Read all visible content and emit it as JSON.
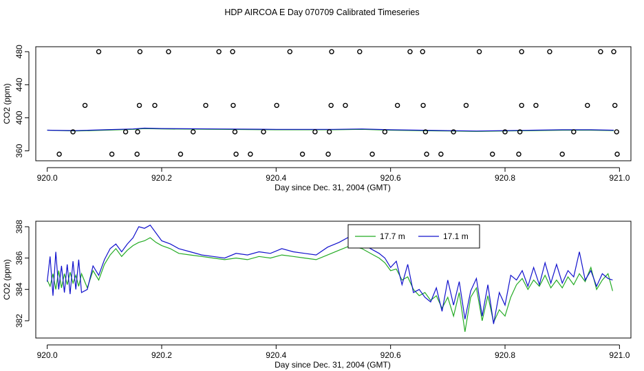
{
  "title": "HDP AIRCOA E  Day 070709  Calibrated Timeseries",
  "colors": {
    "series_a": "#22aa22",
    "series_b": "#1010cc",
    "frame": "#000000"
  },
  "chart_data": [
    {
      "type": "scatter",
      "xlabel": "Day since Dec. 31, 2004 (GMT)",
      "ylabel": "CO2 (ppm)",
      "xlim": [
        919.98,
        921.02
      ],
      "ylim": [
        348,
        486
      ],
      "xticks": [
        920.0,
        920.2,
        920.4,
        920.6,
        920.8,
        921.0
      ],
      "xtick_labels": [
        "920.0",
        "920.2",
        "920.4",
        "920.6",
        "920.8",
        "921.0"
      ],
      "yticks": [
        360,
        400,
        440,
        480
      ],
      "ytick_labels": [
        "360",
        "400",
        "440",
        "480"
      ],
      "grid": false,
      "points": [
        [
          920.09,
          480
        ],
        [
          920.162,
          480
        ],
        [
          920.212,
          480
        ],
        [
          920.3,
          480
        ],
        [
          920.324,
          480
        ],
        [
          920.424,
          480
        ],
        [
          920.497,
          480
        ],
        [
          920.546,
          480
        ],
        [
          920.634,
          480
        ],
        [
          920.656,
          480
        ],
        [
          920.755,
          480
        ],
        [
          920.829,
          480
        ],
        [
          920.878,
          480
        ],
        [
          920.967,
          480
        ],
        [
          920.99,
          480
        ],
        [
          920.066,
          415
        ],
        [
          920.161,
          415
        ],
        [
          920.188,
          415
        ],
        [
          920.277,
          415
        ],
        [
          920.325,
          415
        ],
        [
          920.401,
          415
        ],
        [
          920.496,
          415
        ],
        [
          920.521,
          415
        ],
        [
          920.612,
          415
        ],
        [
          920.657,
          415
        ],
        [
          920.732,
          415
        ],
        [
          920.829,
          415
        ],
        [
          920.854,
          415
        ],
        [
          920.944,
          415
        ],
        [
          920.992,
          415
        ],
        [
          920.045,
          383
        ],
        [
          920.137,
          383
        ],
        [
          920.158,
          383
        ],
        [
          920.255,
          383
        ],
        [
          920.328,
          383
        ],
        [
          920.378,
          383
        ],
        [
          920.468,
          383
        ],
        [
          920.493,
          383
        ],
        [
          920.59,
          383
        ],
        [
          920.661,
          383
        ],
        [
          920.71,
          383
        ],
        [
          920.8,
          383
        ],
        [
          920.826,
          383
        ],
        [
          920.92,
          383
        ],
        [
          920.995,
          383
        ],
        [
          920.021,
          356
        ],
        [
          920.113,
          356
        ],
        [
          920.157,
          356
        ],
        [
          920.233,
          356
        ],
        [
          920.33,
          356
        ],
        [
          920.355,
          356
        ],
        [
          920.446,
          356
        ],
        [
          920.491,
          356
        ],
        [
          920.568,
          356
        ],
        [
          920.663,
          356
        ],
        [
          920.688,
          356
        ],
        [
          920.778,
          356
        ],
        [
          920.824,
          356
        ],
        [
          920.9,
          356
        ],
        [
          920.996,
          356
        ]
      ],
      "series": [
        {
          "name": "17.7 m",
          "x": [
            920.0,
            920.05,
            920.1,
            920.15,
            920.17,
            920.2,
            920.3,
            920.4,
            920.5,
            920.55,
            920.6,
            920.65,
            920.7,
            920.75,
            920.8,
            920.85,
            920.9,
            920.95,
            920.99
          ],
          "values": [
            385,
            384,
            385,
            386,
            387,
            386.5,
            386,
            385.5,
            385.5,
            386,
            385,
            384.5,
            384,
            383.5,
            384,
            384.5,
            385,
            385,
            384.5
          ]
        },
        {
          "name": "17.1 m",
          "x": [
            920.0,
            920.05,
            920.1,
            920.15,
            920.17,
            920.2,
            920.3,
            920.4,
            920.5,
            920.55,
            920.6,
            920.65,
            920.7,
            920.75,
            920.8,
            920.85,
            920.9,
            920.95,
            920.99
          ],
          "values": [
            385,
            384.5,
            385.5,
            386.5,
            387.5,
            387,
            386.5,
            386,
            386,
            386.5,
            385.5,
            385,
            384.5,
            384,
            384.5,
            385,
            385.5,
            385.5,
            385
          ]
        }
      ]
    },
    {
      "type": "line",
      "xlabel": "Day since Dec. 31, 2004 (GMT)",
      "ylabel": "CO2 (ppm)",
      "xlim": [
        919.98,
        921.02
      ],
      "ylim": [
        380.9,
        388.35
      ],
      "xticks": [
        920.0,
        920.2,
        920.4,
        920.6,
        920.8,
        921.0
      ],
      "xtick_labels": [
        "920.0",
        "920.2",
        "920.4",
        "920.6",
        "920.8",
        "921.0"
      ],
      "yticks": [
        382,
        384,
        386,
        388
      ],
      "ytick_labels": [
        "382",
        "384",
        "386",
        "388"
      ],
      "grid": false,
      "legend_position": "top-right",
      "series": [
        {
          "name": "17.7 m",
          "x": [
            920.0,
            920.005,
            920.01,
            920.015,
            920.02,
            920.025,
            920.03,
            920.035,
            920.04,
            920.045,
            920.05,
            920.055,
            920.06,
            920.07,
            920.08,
            920.09,
            920.1,
            920.11,
            920.12,
            920.13,
            920.14,
            920.15,
            920.16,
            920.17,
            920.18,
            920.19,
            920.2,
            920.215,
            920.23,
            920.25,
            920.27,
            920.29,
            920.31,
            920.33,
            920.35,
            920.37,
            920.39,
            920.41,
            920.43,
            920.45,
            920.47,
            920.49,
            920.51,
            920.53,
            920.55,
            920.57,
            920.58,
            920.59,
            920.6,
            920.61,
            920.62,
            920.63,
            920.64,
            920.65,
            920.66,
            920.67,
            920.68,
            920.69,
            920.7,
            920.71,
            920.72,
            920.73,
            920.74,
            920.75,
            920.76,
            920.77,
            920.78,
            920.79,
            920.8,
            920.81,
            920.82,
            920.83,
            920.84,
            920.85,
            920.86,
            920.87,
            920.88,
            920.89,
            920.9,
            920.91,
            920.92,
            920.93,
            920.94,
            920.95,
            920.96,
            920.97,
            920.98,
            920.988
          ],
          "values": [
            384.6,
            384.2,
            385.0,
            384.0,
            385.2,
            384.1,
            385.0,
            384.3,
            385.1,
            384.4,
            384.9,
            384.2,
            385.0,
            384.1,
            385.2,
            384.6,
            385.6,
            386.2,
            386.6,
            386.1,
            386.5,
            386.8,
            387.0,
            387.1,
            387.3,
            387.0,
            386.8,
            386.6,
            386.3,
            386.2,
            386.1,
            386.0,
            385.9,
            386.0,
            385.9,
            386.1,
            386.0,
            386.2,
            386.1,
            386.0,
            385.9,
            386.2,
            386.5,
            386.8,
            386.6,
            386.2,
            386.0,
            385.7,
            385.2,
            385.3,
            384.6,
            384.8,
            384.0,
            383.6,
            383.8,
            383.3,
            383.6,
            382.8,
            383.5,
            382.3,
            383.8,
            381.3,
            383.5,
            384.1,
            382.0,
            383.6,
            381.9,
            382.7,
            382.3,
            383.5,
            384.3,
            384.7,
            384.0,
            384.6,
            384.2,
            384.9,
            384.1,
            384.6,
            384.1,
            384.8,
            384.3,
            385.0,
            384.5,
            385.4,
            384.0,
            384.6,
            385.0,
            383.9
          ]
        },
        {
          "name": "17.1 m",
          "x": [
            920.0,
            920.005,
            920.01,
            920.015,
            920.02,
            920.025,
            920.03,
            920.035,
            920.04,
            920.045,
            920.05,
            920.055,
            920.06,
            920.07,
            920.08,
            920.09,
            920.1,
            920.11,
            920.12,
            920.13,
            920.14,
            920.15,
            920.16,
            920.17,
            920.18,
            920.19,
            920.2,
            920.215,
            920.23,
            920.25,
            920.27,
            920.29,
            920.31,
            920.33,
            920.35,
            920.37,
            920.39,
            920.41,
            920.43,
            920.45,
            920.47,
            920.49,
            920.51,
            920.53,
            920.55,
            920.57,
            920.58,
            920.59,
            920.6,
            920.61,
            920.62,
            920.63,
            920.64,
            920.65,
            920.66,
            920.67,
            920.68,
            920.69,
            920.7,
            920.71,
            920.72,
            920.73,
            920.74,
            920.75,
            920.76,
            920.77,
            920.78,
            920.79,
            920.8,
            920.81,
            920.82,
            920.83,
            920.84,
            920.85,
            920.86,
            920.87,
            920.88,
            920.89,
            920.9,
            920.91,
            920.92,
            920.93,
            920.94,
            920.95,
            920.96,
            920.97,
            920.98,
            920.988
          ],
          "values": [
            384.5,
            386.1,
            383.6,
            386.4,
            384.0,
            385.5,
            383.8,
            385.6,
            383.7,
            385.8,
            384.0,
            385.9,
            383.8,
            384.0,
            385.5,
            384.9,
            385.9,
            386.6,
            386.9,
            386.4,
            386.9,
            387.3,
            388.0,
            387.9,
            388.1,
            387.6,
            387.1,
            386.9,
            386.6,
            386.4,
            386.2,
            386.1,
            386.0,
            386.3,
            386.2,
            386.4,
            386.3,
            386.6,
            386.4,
            386.3,
            386.2,
            386.7,
            387.0,
            387.4,
            386.9,
            386.5,
            386.3,
            386.0,
            385.4,
            385.8,
            384.3,
            385.6,
            383.8,
            384.0,
            383.5,
            383.2,
            384.1,
            382.6,
            384.6,
            383.0,
            384.5,
            382.1,
            383.9,
            384.7,
            382.3,
            384.3,
            381.8,
            383.8,
            383.0,
            384.9,
            384.6,
            385.2,
            384.2,
            385.4,
            384.3,
            385.7,
            384.4,
            385.6,
            384.4,
            385.2,
            384.8,
            386.4,
            384.6,
            385.2,
            384.2,
            385.0,
            384.7,
            384.6
          ]
        }
      ]
    }
  ]
}
